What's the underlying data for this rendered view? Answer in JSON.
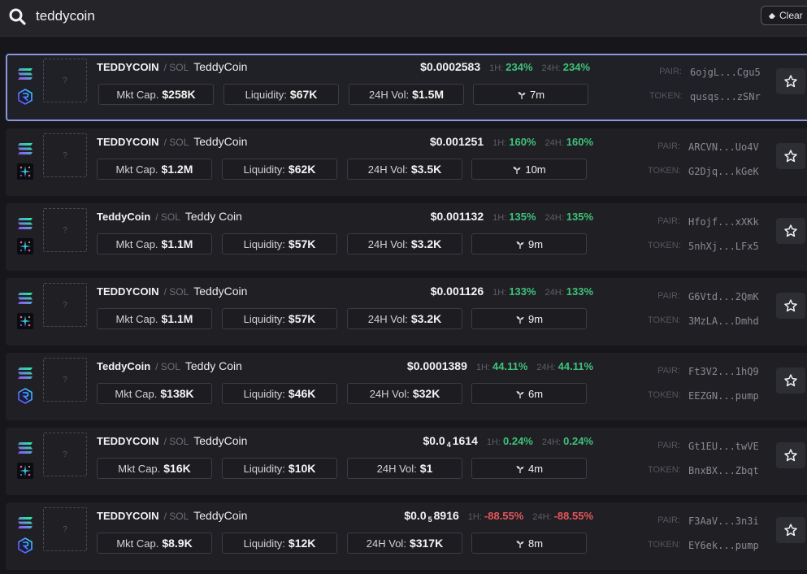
{
  "search": {
    "query": "teddycoin",
    "clear_label": "Clear"
  },
  "labels": {
    "mkt_cap": "Mkt Cap.",
    "liquidity": "Liquidity:",
    "vol_24h": "24H Vol:",
    "h1": "1H:",
    "h24": "24H:",
    "pair": "PAIR:",
    "token": "TOKEN:",
    "thumb_placeholder": "?"
  },
  "colors": {
    "positive": "#3fc279",
    "negative": "#e5565a",
    "selected_border": "#8c95de"
  },
  "results": [
    {
      "symbol": "TEDDYCOIN",
      "quote": "/ SOL",
      "name": "TeddyCoin",
      "price": "$0.0002583",
      "change_1h": "234%",
      "change_24h": "234%",
      "direction": "up",
      "mkt_cap": "$258K",
      "liquidity": "$67K",
      "volume_24h": "$1.5M",
      "age": "7m",
      "pair_address": "6ojgL...Cgu5",
      "token_address": "qusqs...zSNr",
      "dex_icon": "raydium-icon",
      "selected": true
    },
    {
      "symbol": "TEDDYCOIN",
      "quote": "/ SOL",
      "name": "TeddyCoin",
      "price": "$0.001251",
      "change_1h": "160%",
      "change_24h": "160%",
      "direction": "up",
      "mkt_cap": "$1.2M",
      "liquidity": "$62K",
      "volume_24h": "$3.5K",
      "age": "10m",
      "pair_address": "ARCVN...Uo4V",
      "token_address": "G2Djq...kGeK",
      "dex_icon": "orca-icon",
      "selected": false
    },
    {
      "symbol": "TeddyCoin",
      "quote": "/ SOL",
      "name": "Teddy Coin",
      "price": "$0.001132",
      "change_1h": "135%",
      "change_24h": "135%",
      "direction": "up",
      "mkt_cap": "$1.1M",
      "liquidity": "$57K",
      "volume_24h": "$3.2K",
      "age": "9m",
      "pair_address": "Hfojf...xXKk",
      "token_address": "5nhXj...LFx5",
      "dex_icon": "orca-icon",
      "selected": false
    },
    {
      "symbol": "TEDDYCOIN",
      "quote": "/ SOL",
      "name": "TeddyCoin",
      "price": "$0.001126",
      "change_1h": "133%",
      "change_24h": "133%",
      "direction": "up",
      "mkt_cap": "$1.1M",
      "liquidity": "$57K",
      "volume_24h": "$3.2K",
      "age": "9m",
      "pair_address": "G6Vtd...2QmK",
      "token_address": "3MzLA...Dmhd",
      "dex_icon": "orca-icon",
      "selected": false
    },
    {
      "symbol": "TeddyCoin",
      "quote": "/ SOL",
      "name": "Teddy Coin",
      "price": "$0.0001389",
      "change_1h": "44.11%",
      "change_24h": "44.11%",
      "direction": "up",
      "mkt_cap": "$138K",
      "liquidity": "$46K",
      "volume_24h": "$32K",
      "age": "6m",
      "pair_address": "Ft3V2...1hQ9",
      "token_address": "EEZGN...pump",
      "dex_icon": "raydium-icon",
      "selected": false
    },
    {
      "symbol": "TEDDYCOIN",
      "quote": "/ SOL",
      "name": "TeddyCoin",
      "price_prefix": "$0.0",
      "price_zeros": "4",
      "price_digits": "1614",
      "change_1h": "0.24%",
      "change_24h": "0.24%",
      "direction": "up",
      "mkt_cap": "$16K",
      "liquidity": "$10K",
      "volume_24h": "$1",
      "age": "4m",
      "pair_address": "Gt1EU...twVE",
      "token_address": "BnxBX...Zbqt",
      "dex_icon": "orca-icon",
      "selected": false
    },
    {
      "symbol": "TEDDYCOIN",
      "quote": "/ SOL",
      "name": "TeddyCoin",
      "price_prefix": "$0.0",
      "price_zeros": "5",
      "price_digits": "8916",
      "change_1h": "-88.55%",
      "change_24h": "-88.55%",
      "direction": "down",
      "mkt_cap": "$8.9K",
      "liquidity": "$12K",
      "volume_24h": "$317K",
      "age": "8m",
      "pair_address": "F3AaV...3n3i",
      "token_address": "EY6ek...pump",
      "dex_icon": "raydium-icon",
      "selected": false
    }
  ]
}
